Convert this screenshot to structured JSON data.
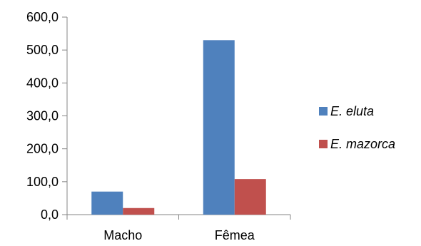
{
  "chart_data": {
    "type": "bar",
    "categories": [
      "Macho",
      "Fêmea"
    ],
    "series": [
      {
        "name": "E. eluta",
        "values": [
          70,
          530
        ],
        "color": "#4f81bd"
      },
      {
        "name": "E. mazorca",
        "values": [
          20,
          108
        ],
        "color": "#c0504d"
      }
    ],
    "title": "",
    "xlabel": "",
    "ylabel": "",
    "ylim": [
      0,
      600
    ],
    "yticks": [
      0,
      100,
      200,
      300,
      400,
      500,
      600
    ],
    "ytick_labels": [
      "0,0",
      "100,0",
      "200,0",
      "300,0",
      "400,0",
      "500,0",
      "600,0"
    ],
    "grid": false,
    "legend_position": "right"
  }
}
